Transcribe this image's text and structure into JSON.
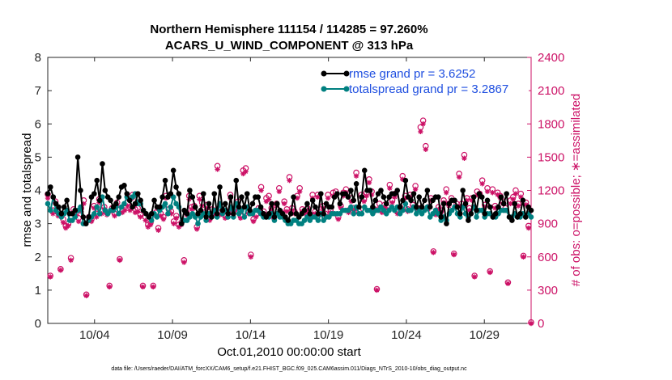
{
  "chart_data": {
    "type": "line",
    "title_line1": "Northern Hemisphere 111154 / 114285 = 97.260%",
    "title_line2": "ACARS_U_WIND_COMPONENT @ 313 hPa",
    "xlabel": "Oct.01,2010 00:00:00 start",
    "ylabel_left": "rmse and totalspread",
    "ylabel_right": "# of obs: o=possible; ∗=assimilated",
    "footnote": "data file: /Users/raeder/DAI/ATM_forcXX/CAM6_setup/f.e21.FHIST_BGC.f09_025.CAM6assim.011/Diags_NTrS_2010-10/obs_diag_output.nc",
    "xlim": [
      1.0,
      32.0
    ],
    "ylim_left": [
      0,
      8
    ],
    "ylim_right": [
      0,
      2400
    ],
    "xticks": [
      {
        "x": 4,
        "label": "10/04"
      },
      {
        "x": 9,
        "label": "10/09"
      },
      {
        "x": 14,
        "label": "10/14"
      },
      {
        "x": 19,
        "label": "10/19"
      },
      {
        "x": 24,
        "label": "10/24"
      },
      {
        "x": 29,
        "label": "10/29"
      }
    ],
    "yticks_left": [
      "0",
      "1",
      "2",
      "3",
      "4",
      "5",
      "6",
      "7",
      "8"
    ],
    "yticks_right": [
      "0",
      "300",
      "600",
      "900",
      "1200",
      "1500",
      "1800",
      "2100",
      "2400"
    ],
    "colors": {
      "rmse": "#000000",
      "totalspread": "#008080",
      "obs": "#cc1166",
      "legend_text": "#1f4fe0",
      "right_axis": "#cc1166"
    },
    "series": [
      {
        "name": "rmse grand pr = 3.6252",
        "legend": "rmse grand pr = 3.6252",
        "axis": "left",
        "values": [
          3.9,
          4.1,
          3.8,
          3.6,
          3.5,
          3.3,
          3.5,
          3.7,
          3.3,
          3.3,
          3.4,
          5.0,
          4.0,
          3.2,
          3.0,
          3.2,
          3.8,
          3.9,
          4.3,
          3.7,
          4.8,
          4.0,
          3.8,
          3.7,
          3.5,
          3.6,
          3.8,
          4.1,
          4.15,
          3.9,
          3.7,
          3.5,
          3.6,
          3.9,
          3.7,
          3.4,
          3.3,
          3.2,
          3.3,
          3.7,
          3.5,
          3.5,
          3.8,
          4.3,
          3.8,
          3.9,
          4.6,
          4.1,
          3.9,
          3.0,
          3.4,
          3.3,
          4.0,
          3.8,
          3.5,
          3.3,
          3.4,
          3.9,
          3.2,
          3.6,
          3.2,
          3.9,
          3.3,
          4.1,
          3.4,
          3.6,
          3.3,
          3.8,
          3.3,
          4.3,
          3.5,
          3.8,
          3.5,
          3.9,
          3.4,
          3.6,
          3.8,
          3.8,
          3.5,
          3.3,
          3.2,
          3.3,
          3.6,
          3.2,
          3.6,
          3.4,
          3.3,
          3.2,
          3.1,
          3.3,
          3.8,
          3.3,
          3.2,
          3.3,
          3.4,
          3.6,
          3.3,
          3.7,
          3.5,
          3.3,
          3.9,
          3.3,
          3.6,
          3.5,
          3.5,
          3.8,
          3.9,
          3.6,
          3.9,
          3.9,
          3.8,
          4.0,
          3.7,
          4.2,
          3.5,
          3.8,
          4.6,
          4.0,
          4.0,
          3.5,
          3.7,
          3.9,
          4.0,
          3.8,
          3.6,
          3.8,
          3.9,
          3.9,
          4.0,
          3.5,
          3.7,
          4.3,
          3.8,
          3.7,
          3.9,
          3.5,
          3.8,
          3.5,
          3.7,
          4.0,
          3.5,
          3.7,
          3.8,
          3.8,
          3.2,
          3.6,
          3.0,
          3.6,
          3.7,
          3.7,
          3.5,
          3.3,
          4.0,
          3.6,
          3.1,
          3.3,
          3.8,
          3.4,
          3.9,
          3.8,
          3.3,
          3.7,
          3.5,
          3.2,
          3.3,
          3.5,
          3.8,
          3.6,
          3.9,
          3.2,
          3.1,
          3.6,
          3.2,
          3.3,
          3.7,
          3.2,
          3.5,
          3.4
        ]
      },
      {
        "name": "totalspread grand pr = 3.2867",
        "legend": "totalspread grand pr = 3.2867",
        "axis": "left",
        "values": [
          3.6,
          3.4,
          3.8,
          3.4,
          3.3,
          3.2,
          3.3,
          3.4,
          3.1,
          3.1,
          3.2,
          3.4,
          3.5,
          3.0,
          3.0,
          3.1,
          3.2,
          3.3,
          3.5,
          3.3,
          3.8,
          3.4,
          3.3,
          3.4,
          3.4,
          3.5,
          3.3,
          3.5,
          3.6,
          3.8,
          3.7,
          3.8,
          3.9,
          3.6,
          3.6,
          3.4,
          3.3,
          3.2,
          3.1,
          3.3,
          3.2,
          3.4,
          3.5,
          3.6,
          3.3,
          3.5,
          3.8,
          3.6,
          3.5,
          3.0,
          3.1,
          3.1,
          3.2,
          3.3,
          3.2,
          3.0,
          3.2,
          3.3,
          3.1,
          3.3,
          3.2,
          3.4,
          3.2,
          3.6,
          3.3,
          3.4,
          3.2,
          3.5,
          3.2,
          3.6,
          3.3,
          3.4,
          3.2,
          3.5,
          3.3,
          3.3,
          3.4,
          3.4,
          3.3,
          3.2,
          3.2,
          3.2,
          3.3,
          3.1,
          3.3,
          3.2,
          3.2,
          3.1,
          3.0,
          3.0,
          3.1,
          3.1,
          3.0,
          3.0,
          3.1,
          3.2,
          3.1,
          3.2,
          3.2,
          3.1,
          3.3,
          3.1,
          3.2,
          3.2,
          3.3,
          3.3,
          3.3,
          3.3,
          3.4,
          3.4,
          3.4,
          3.5,
          3.3,
          3.5,
          3.3,
          3.3,
          3.5,
          3.4,
          3.4,
          3.3,
          3.4,
          3.4,
          3.5,
          3.4,
          3.3,
          3.4,
          3.5,
          3.4,
          3.5,
          3.3,
          3.4,
          3.6,
          3.4,
          3.4,
          3.5,
          3.3,
          3.4,
          3.3,
          3.4,
          3.5,
          3.2,
          3.3,
          3.4,
          3.3,
          3.1,
          3.2,
          3.1,
          3.3,
          3.4,
          3.5,
          3.3,
          3.2,
          3.5,
          3.3,
          3.2,
          3.3,
          3.5,
          3.2,
          3.4,
          3.4,
          3.2,
          3.3,
          3.3,
          3.2,
          3.2,
          3.3,
          3.4,
          3.4,
          3.4,
          3.2,
          3.2,
          3.3,
          3.2,
          3.2,
          3.3,
          3.2,
          3.3,
          3.2
        ]
      },
      {
        "name": "# of obs possible",
        "axis": "right",
        "values": [
          1165,
          430,
          1020,
          1100,
          1000,
          490,
          940,
          880,
          900,
          590,
          1030,
          990,
          950,
          1040,
          1110,
          260,
          960,
          940,
          1060,
          990,
          1120,
          1020,
          1050,
          1000,
          340,
          1040,
          990,
          1090,
          580,
          1030,
          1050,
          1090,
          1050,
          1160,
          1030,
          1040,
          980,
          340,
          960,
          890,
          910,
          340,
          1000,
          860,
          990,
          960,
          1150,
          1030,
          1010,
          920,
          970,
          890,
          910,
          570,
          1000,
          1150,
          1050,
          1060,
          870,
          1150,
          1090,
          1000,
          1070,
          950,
          1030,
          1000,
          1420,
          1000,
          1020,
          970,
          1010,
          1160,
          1000,
          1040,
          1100,
          970,
          1380,
          1400,
          1010,
          620,
          940,
          980,
          1040,
          1230,
          1010,
          1130,
          1150,
          1040,
          960,
          1080,
          1220,
          1000,
          1100,
          1030,
          1320,
          1040,
          1010,
          1150,
          1220,
          1030,
          1010,
          1040,
          970,
          1160,
          1010,
          1160,
          1000,
          1060,
          990,
          1160,
          1020,
          1180,
          1190,
          960,
          1060,
          1180,
          1210,
          1020,
          1130,
          1040,
          1360,
          1010,
          1160,
          1120,
          1180,
          1300,
          1190,
          1030,
          310,
          1080,
          1020,
          1070,
          1050,
          1250,
          1110,
          1170,
          1010,
          1050,
          1330,
          1150,
          1030,
          1160,
          1070,
          1240,
          1040,
          1770,
          1830,
          1600,
          1050,
          1130,
          650,
          1000,
          1050,
          1020,
          1110,
          1210,
          1080,
          1130,
          630,
          1080,
          1350,
          1080,
          1520,
          1130,
          1040,
          1130,
          430,
          1190,
          1170,
          1290,
          1070,
          1220,
          470,
          1210,
          1060,
          1180,
          1150,
          1100,
          1040,
          370,
          1110,
          1140,
          1200,
          1080,
          1170,
          610,
          1090,
          880,
          10
        ]
      },
      {
        "name": "# of obs assimilated",
        "axis": "right",
        "values": [
          1130,
          420,
          990,
          1080,
          970,
          480,
          910,
          860,
          880,
          570,
          1000,
          970,
          920,
          1010,
          1080,
          250,
          930,
          920,
          1040,
          960,
          1090,
          990,
          1030,
          980,
          330,
          1010,
          970,
          1060,
          570,
          1000,
          1020,
          1060,
          1020,
          1130,
          1000,
          1010,
          960,
          330,
          930,
          870,
          890,
          330,
          970,
          840,
          970,
          940,
          1130,
          1000,
          990,
          900,
          950,
          870,
          890,
          550,
          980,
          1120,
          1030,
          1040,
          850,
          1120,
          1060,
          980,
          1040,
          930,
          1000,
          980,
          1390,
          980,
          990,
          950,
          990,
          1130,
          980,
          1020,
          1080,
          950,
          1350,
          1370,
          990,
          600,
          920,
          960,
          1020,
          1200,
          990,
          1100,
          1120,
          1020,
          940,
          1060,
          1190,
          980,
          1080,
          1010,
          1290,
          1020,
          990,
          1130,
          1190,
          1010,
          990,
          1020,
          950,
          1130,
          990,
          1140,
          980,
          1040,
          970,
          1130,
          1000,
          1150,
          1160,
          940,
          1040,
          1150,
          1180,
          1000,
          1100,
          1020,
          1330,
          990,
          1140,
          1100,
          1150,
          1270,
          1160,
          1010,
          300,
          1050,
          1000,
          1050,
          1030,
          1220,
          1090,
          1140,
          990,
          1030,
          1300,
          1130,
          1010,
          1140,
          1050,
          1210,
          1020,
          1730,
          1800,
          1570,
          1030,
          1110,
          640,
          980,
          1030,
          1000,
          1090,
          1180,
          1060,
          1110,
          620,
          1060,
          1320,
          1060,
          1490,
          1110,
          1020,
          1110,
          420,
          1160,
          1150,
          1260,
          1050,
          1190,
          460,
          1180,
          1040,
          1160,
          1130,
          1080,
          1020,
          360,
          1080,
          1120,
          1170,
          1060,
          1140,
          600,
          1070,
          860,
          0
        ]
      }
    ]
  }
}
